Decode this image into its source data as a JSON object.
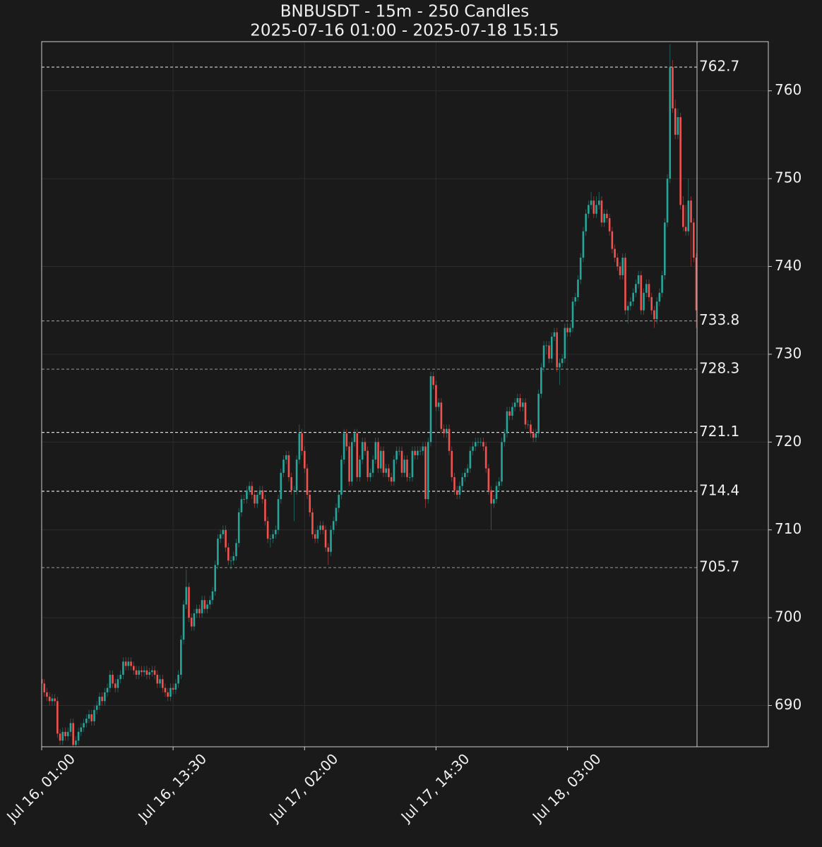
{
  "chart_data": {
    "type": "candlestick",
    "title": "BNBUSDT - 15m - 250 Candles",
    "subtitle": "2025-07-16 01:00 - 2025-07-18 15:15",
    "up_color": "#26a69a",
    "down_color": "#ef5350",
    "grid": true,
    "ylim": [
      685.3,
      765.6
    ],
    "yticks": [
      690,
      700,
      710,
      720,
      730,
      740,
      750,
      760
    ],
    "xticks": [
      "Jul 16, 01:00",
      "Jul 16, 13:30",
      "Jul 17, 02:00",
      "Jul 17, 14:30",
      "Jul 18, 03:00"
    ],
    "levels": [
      {
        "value": 762.7,
        "color": "#d8d8d8"
      },
      {
        "value": 733.8,
        "color": "#8a8a8a"
      },
      {
        "value": 728.3,
        "color": "#8a8a8a"
      },
      {
        "value": 721.1,
        "color": "#d8d8d8"
      },
      {
        "value": 714.4,
        "color": "#d8d8d8"
      },
      {
        "value": 705.7,
        "color": "#8a8a8a"
      }
    ],
    "x": [
      "Jul 16, 01:00",
      "Jul 16, 01:15",
      "Jul 16, 01:30",
      "Jul 16, 01:45",
      "Jul 16, 02:00",
      "Jul 16, 02:15",
      "Jul 16, 02:30",
      "Jul 16, 02:45",
      "Jul 16, 03:00",
      "Jul 16, 03:15",
      "Jul 16, 03:30",
      "Jul 16, 03:45",
      "Jul 16, 04:00",
      "Jul 16, 04:15",
      "Jul 16, 04:30",
      "Jul 16, 04:45",
      "Jul 16, 05:00",
      "Jul 16, 05:15",
      "Jul 16, 05:30",
      "Jul 16, 05:45",
      "Jul 16, 06:00",
      "Jul 16, 06:15",
      "Jul 16, 06:30",
      "Jul 16, 06:45",
      "Jul 16, 07:00",
      "Jul 16, 07:15",
      "Jul 16, 07:30",
      "Jul 16, 07:45",
      "Jul 16, 08:00",
      "Jul 16, 08:15",
      "Jul 16, 08:30",
      "Jul 16, 08:45",
      "Jul 16, 09:00",
      "Jul 16, 09:15",
      "Jul 16, 09:30",
      "Jul 16, 09:45",
      "Jul 16, 10:00",
      "Jul 16, 10:15",
      "Jul 16, 10:30",
      "Jul 16, 10:45",
      "Jul 16, 11:00",
      "Jul 16, 11:15",
      "Jul 16, 11:30",
      "Jul 16, 11:45",
      "Jul 16, 12:00",
      "Jul 16, 12:15",
      "Jul 16, 12:30",
      "Jul 16, 12:45",
      "Jul 16, 13:00",
      "Jul 16, 13:15",
      "Jul 16, 13:30",
      "Jul 16, 13:45",
      "Jul 16, 14:00",
      "Jul 16, 14:15",
      "Jul 16, 14:30",
      "Jul 16, 14:45",
      "Jul 16, 15:00",
      "Jul 16, 15:15",
      "Jul 16, 15:30",
      "Jul 16, 15:45",
      "Jul 16, 16:00",
      "Jul 16, 16:15",
      "Jul 16, 16:30",
      "Jul 16, 16:45",
      "Jul 16, 17:00",
      "Jul 16, 17:15",
      "Jul 16, 17:30",
      "Jul 16, 17:45",
      "Jul 16, 18:00",
      "Jul 16, 18:15",
      "Jul 16, 18:30",
      "Jul 16, 18:45",
      "Jul 16, 19:00",
      "Jul 16, 19:15",
      "Jul 16, 19:30",
      "Jul 16, 19:45",
      "Jul 16, 20:00",
      "Jul 16, 20:15",
      "Jul 16, 20:30",
      "Jul 16, 20:45",
      "Jul 16, 21:00",
      "Jul 16, 21:15",
      "Jul 16, 21:30",
      "Jul 16, 21:45",
      "Jul 16, 22:00",
      "Jul 16, 22:15",
      "Jul 16, 22:30",
      "Jul 16, 22:45",
      "Jul 16, 23:00",
      "Jul 16, 23:15",
      "Jul 16, 23:30",
      "Jul 16, 23:45",
      "Jul 17, 00:00",
      "Jul 17, 00:15",
      "Jul 17, 00:30",
      "Jul 17, 00:45",
      "Jul 17, 01:00",
      "Jul 17, 01:15",
      "Jul 17, 01:30",
      "Jul 17, 01:45",
      "Jul 17, 02:00",
      "Jul 17, 02:15",
      "Jul 17, 02:30",
      "Jul 17, 02:45",
      "Jul 17, 03:00",
      "Jul 17, 03:15",
      "Jul 17, 03:30",
      "Jul 17, 03:45",
      "Jul 17, 04:00",
      "Jul 17, 04:15",
      "Jul 17, 04:30",
      "Jul 17, 04:45",
      "Jul 17, 05:00",
      "Jul 17, 05:15",
      "Jul 17, 05:30",
      "Jul 17, 05:45",
      "Jul 17, 06:00",
      "Jul 17, 06:15",
      "Jul 17, 06:30",
      "Jul 17, 06:45",
      "Jul 17, 07:00",
      "Jul 17, 07:15",
      "Jul 17, 07:30",
      "Jul 17, 07:45",
      "Jul 17, 08:00",
      "Jul 17, 08:15",
      "Jul 17, 08:30",
      "Jul 17, 08:45",
      "Jul 17, 09:00",
      "Jul 17, 09:15",
      "Jul 17, 09:30",
      "Jul 17, 09:45",
      "Jul 17, 10:00",
      "Jul 17, 10:15",
      "Jul 17, 10:30",
      "Jul 17, 10:45",
      "Jul 17, 11:00",
      "Jul 17, 11:15",
      "Jul 17, 11:30",
      "Jul 17, 11:45",
      "Jul 17, 12:00",
      "Jul 17, 12:15",
      "Jul 17, 12:30",
      "Jul 17, 12:45",
      "Jul 17, 13:00",
      "Jul 17, 13:15",
      "Jul 17, 13:30",
      "Jul 17, 13:45",
      "Jul 17, 14:00",
      "Jul 17, 14:15",
      "Jul 17, 14:30",
      "Jul 17, 14:45",
      "Jul 17, 15:00",
      "Jul 17, 15:15",
      "Jul 17, 15:30",
      "Jul 17, 15:45",
      "Jul 17, 16:00",
      "Jul 17, 16:15",
      "Jul 17, 16:30",
      "Jul 17, 16:45",
      "Jul 17, 17:00",
      "Jul 17, 17:15",
      "Jul 17, 17:30",
      "Jul 17, 17:45",
      "Jul 17, 18:00",
      "Jul 17, 18:15",
      "Jul 17, 18:30",
      "Jul 17, 18:45",
      "Jul 17, 19:00",
      "Jul 17, 19:15",
      "Jul 17, 19:30",
      "Jul 17, 19:45",
      "Jul 17, 20:00",
      "Jul 17, 20:15",
      "Jul 17, 20:30",
      "Jul 17, 20:45",
      "Jul 17, 21:00",
      "Jul 17, 21:15",
      "Jul 17, 21:30",
      "Jul 17, 21:45",
      "Jul 17, 22:00",
      "Jul 17, 22:15",
      "Jul 17, 22:30",
      "Jul 17, 22:45",
      "Jul 17, 23:00",
      "Jul 17, 23:15",
      "Jul 17, 23:30",
      "Jul 17, 23:45",
      "Jul 18, 00:00",
      "Jul 18, 00:15",
      "Jul 18, 00:30",
      "Jul 18, 00:45",
      "Jul 18, 01:00",
      "Jul 18, 01:15",
      "Jul 18, 01:30",
      "Jul 18, 01:45",
      "Jul 18, 02:00",
      "Jul 18, 02:15",
      "Jul 18, 02:30",
      "Jul 18, 02:45",
      "Jul 18, 03:00",
      "Jul 18, 03:15",
      "Jul 18, 03:30",
      "Jul 18, 03:45",
      "Jul 18, 04:00",
      "Jul 18, 04:15",
      "Jul 18, 04:30",
      "Jul 18, 04:45",
      "Jul 18, 05:00",
      "Jul 18, 05:15",
      "Jul 18, 05:30",
      "Jul 18, 05:45",
      "Jul 18, 06:00",
      "Jul 18, 06:15",
      "Jul 18, 06:30",
      "Jul 18, 06:45",
      "Jul 18, 07:00",
      "Jul 18, 07:15",
      "Jul 18, 07:30",
      "Jul 18, 07:45",
      "Jul 18, 08:00",
      "Jul 18, 08:15",
      "Jul 18, 08:30",
      "Jul 18, 08:45",
      "Jul 18, 09:00",
      "Jul 18, 09:15",
      "Jul 18, 09:30",
      "Jul 18, 09:45",
      "Jul 18, 10:00",
      "Jul 18, 10:15",
      "Jul 18, 10:30",
      "Jul 18, 10:45",
      "Jul 18, 11:00",
      "Jul 18, 11:15",
      "Jul 18, 11:30",
      "Jul 18, 11:45",
      "Jul 18, 12:00",
      "Jul 18, 12:15",
      "Jul 18, 12:30",
      "Jul 18, 12:45",
      "Jul 18, 13:00",
      "Jul 18, 13:15",
      "Jul 18, 13:30",
      "Jul 18, 13:45",
      "Jul 18, 14:00",
      "Jul 18, 14:15",
      "Jul 18, 14:30",
      "Jul 18, 14:45",
      "Jul 18, 15:00",
      "Jul 18, 15:15"
    ],
    "open": [
      693,
      692.5,
      691.5,
      691,
      690.5,
      690.8,
      690.5,
      686.8,
      686,
      687,
      686.5,
      687,
      688,
      685.5,
      686,
      687,
      687.5,
      688,
      688.5,
      689,
      688.2,
      689.5,
      690,
      691,
      690.5,
      691.5,
      692,
      693.5,
      692.5,
      692,
      693,
      693.5,
      695,
      694.5,
      695,
      694.5,
      694,
      693.5,
      694,
      693.8,
      694,
      693.5,
      693.8,
      694,
      693.5,
      692.5,
      693,
      692,
      691.5,
      691,
      692,
      691.8,
      692.5,
      693.5,
      697.5,
      701.5,
      703.5,
      700,
      699,
      700.5,
      701,
      700.5,
      702,
      701,
      701.5,
      702,
      703,
      706,
      709,
      709.5,
      710,
      708,
      706.5,
      706.5,
      707,
      708.5,
      712,
      713.5,
      713.5,
      714.5,
      715,
      714,
      713,
      714,
      714.5,
      713.5,
      711,
      709,
      709,
      709.5,
      710,
      713.5,
      716.5,
      718,
      718.5,
      716,
      714.5,
      714.5,
      718,
      721,
      719,
      717,
      714,
      712,
      709.5,
      709,
      710,
      710.5,
      710,
      708,
      707.5,
      710,
      711,
      712.5,
      714,
      718,
      721,
      719.5,
      715.5,
      720,
      721,
      716,
      718,
      720,
      719,
      716,
      716.5,
      718,
      720,
      717,
      719,
      716.5,
      717,
      716,
      715.5,
      718,
      719,
      719,
      716.5,
      718,
      716,
      716,
      719,
      718.5,
      719,
      719,
      719.5,
      713.5,
      720,
      727.5,
      726.5,
      724,
      724.5,
      721.5,
      721,
      721.5,
      719,
      716,
      714.5,
      714,
      715,
      716,
      716.5,
      717,
      719,
      719.5,
      720,
      720,
      720,
      719.5,
      717,
      714.5,
      713,
      713.5,
      715,
      715.5,
      720,
      721,
      723.5,
      723,
      724,
      724.5,
      725,
      724,
      724.5,
      722,
      722,
      721,
      720.5,
      721,
      725.5,
      728.5,
      731,
      731,
      729.5,
      732,
      732.5,
      728.5,
      729,
      729.5,
      733,
      732.5,
      733,
      736,
      736.5,
      738.5,
      741,
      744,
      746,
      747,
      747.5,
      746,
      747,
      747.5,
      745,
      746,
      745.5,
      744,
      742,
      741,
      740,
      739,
      741,
      735,
      735.5,
      736,
      737,
      738,
      739,
      735,
      737,
      738,
      736.5,
      735,
      734,
      736,
      737,
      739,
      745,
      750,
      762.7,
      758,
      755,
      757,
      747,
      744.5,
      744,
      747.5,
      745,
      741
    ],
    "high": [
      693.5,
      693,
      692,
      691.5,
      691.3,
      691.3,
      691,
      687.3,
      687.5,
      687.5,
      687.5,
      688.5,
      688.5,
      686.5,
      687.5,
      688,
      688.5,
      689,
      689.5,
      689.5,
      690,
      690.5,
      691.5,
      691.5,
      692,
      692.5,
      694,
      694,
      693,
      693.5,
      694,
      695.5,
      695.5,
      695.5,
      695.5,
      695,
      694.5,
      694.5,
      694.5,
      694.5,
      694.5,
      694.3,
      694.5,
      694.5,
      694,
      693.5,
      693.5,
      692.5,
      692,
      692.5,
      692.5,
      693,
      694,
      698,
      702,
      705.5,
      704,
      700.5,
      701,
      701.5,
      701.5,
      702.5,
      702.5,
      702,
      702.5,
      703.5,
      706.5,
      709.5,
      710,
      710.5,
      710.5,
      708.5,
      707,
      707.5,
      709,
      712.5,
      714,
      714,
      715,
      715.5,
      715.5,
      714.5,
      714.5,
      715,
      715,
      714,
      711.5,
      709.5,
      710,
      710.5,
      714,
      717,
      718.5,
      719,
      719,
      716.5,
      715,
      718.5,
      722,
      721.5,
      719.5,
      717.5,
      714.5,
      712.5,
      710,
      710.5,
      711,
      711,
      710.5,
      708.5,
      710.5,
      711.5,
      713,
      714.5,
      718.5,
      721.5,
      721.5,
      720,
      720.5,
      721.5,
      721.5,
      718.5,
      720.5,
      720.5,
      719.5,
      717,
      718.5,
      720.5,
      720.5,
      719.5,
      719.5,
      717.5,
      717.5,
      716.5,
      718.5,
      719.5,
      719.5,
      719.5,
      718.5,
      718.5,
      716.5,
      719.5,
      719.5,
      719.5,
      719.5,
      720,
      720,
      720.5,
      728,
      728,
      727,
      725,
      725,
      722,
      722,
      722,
      719.5,
      716.5,
      715,
      715.5,
      716.5,
      717,
      717.5,
      719.5,
      720,
      720.5,
      720.5,
      720.5,
      720.5,
      720,
      717.5,
      715,
      714,
      715.5,
      716,
      720.5,
      721.5,
      724,
      724,
      724.5,
      725,
      725.5,
      725.5,
      725,
      725,
      722.5,
      722.5,
      721.5,
      721.5,
      726,
      729,
      731.5,
      731.5,
      731.5,
      732.5,
      733,
      733,
      729.5,
      730,
      733.5,
      733.5,
      733.5,
      736.5,
      737,
      739,
      741.5,
      744.5,
      746.5,
      747.5,
      748.5,
      748,
      748,
      748.5,
      748,
      746.5,
      746.5,
      746,
      744.5,
      742.5,
      741.5,
      740.5,
      741.5,
      741.5,
      736,
      736.5,
      737.5,
      738.5,
      739.5,
      739.5,
      737.5,
      738.5,
      738.5,
      737,
      735.5,
      736.5,
      737.5,
      739.5,
      745.5,
      750.5,
      765.3,
      763.5,
      759,
      758,
      757.5,
      748,
      747,
      750,
      748,
      745.5,
      741.5
    ],
    "low": [
      692,
      691,
      690.5,
      690,
      690,
      690,
      686.3,
      685.5,
      685.5,
      686,
      686,
      686.5,
      684.5,
      685,
      685.5,
      686.5,
      687,
      687.5,
      688,
      687.7,
      687.7,
      689,
      689.5,
      690,
      690,
      691,
      691.5,
      692,
      691.5,
      691.5,
      692.5,
      693,
      694,
      694,
      694,
      693.5,
      693,
      693,
      693.3,
      693.3,
      693,
      693,
      693.3,
      693,
      692,
      692,
      691.5,
      691,
      690.5,
      690.5,
      691.3,
      691.3,
      692,
      693,
      697,
      701,
      699.5,
      698.5,
      698.5,
      700,
      700,
      700,
      700.5,
      700.5,
      701,
      701.5,
      702.5,
      705.5,
      708.5,
      709,
      707.5,
      706,
      705.5,
      706,
      706.5,
      708,
      711.5,
      713,
      713,
      714,
      713.5,
      712.5,
      712.5,
      713.5,
      713,
      710.5,
      708.5,
      708,
      708.5,
      709,
      709.5,
      713,
      716,
      717.5,
      715.5,
      714,
      711,
      714,
      717.5,
      718.5,
      716.5,
      713.5,
      711.5,
      709,
      708.5,
      708.5,
      709.5,
      709.5,
      707.5,
      706,
      707,
      709.5,
      710.5,
      712,
      713.5,
      717.5,
      719,
      715,
      715,
      719.5,
      715.5,
      715.5,
      717.5,
      718.5,
      715.5,
      715.5,
      716,
      717.5,
      716.5,
      716.5,
      716,
      716,
      715.5,
      715,
      715,
      717.5,
      718.5,
      716,
      716,
      715.5,
      715.5,
      715.5,
      718,
      718,
      718.5,
      718.5,
      712.5,
      713,
      719.5,
      726,
      723.5,
      723.5,
      721,
      720.5,
      720.5,
      718.5,
      715.5,
      714,
      713.5,
      713.5,
      714.5,
      715.5,
      716,
      716.5,
      718.5,
      719,
      719.5,
      719.5,
      719,
      716.5,
      714,
      710,
      712.5,
      713,
      714.5,
      715,
      719.5,
      720.5,
      722.5,
      722.5,
      723.5,
      724,
      723.5,
      723.5,
      721.5,
      721.5,
      720.5,
      720,
      720,
      720.5,
      725,
      728,
      730,
      729,
      729,
      731.5,
      728,
      726.5,
      728.5,
      729,
      732,
      732,
      732.5,
      735.5,
      736,
      738,
      740.5,
      743.5,
      745.5,
      746.5,
      745.5,
      745.5,
      746.5,
      744.5,
      744.5,
      745,
      743.5,
      741.5,
      740.5,
      739.5,
      738.5,
      738.5,
      734.5,
      733.5,
      735,
      735.5,
      736.5,
      737.5,
      734.5,
      734.5,
      736.5,
      736,
      734.5,
      733,
      733.5,
      735.5,
      736.5,
      738.5,
      744.5,
      749.5,
      757.5,
      754.5,
      754.5,
      746.5,
      744,
      743.5,
      743.5,
      740,
      740.5,
      733
    ],
    "close": [
      692.5,
      691.5,
      691,
      690.5,
      690.8,
      690.5,
      686.8,
      686,
      687,
      686.5,
      687,
      688,
      685.5,
      686,
      687,
      687.5,
      688,
      688.5,
      689,
      688.2,
      689.5,
      690,
      691,
      690.5,
      691.5,
      692,
      693.5,
      692.5,
      692,
      693,
      693.5,
      695,
      694.5,
      695,
      694.5,
      694,
      693.5,
      694,
      693.8,
      694,
      693.5,
      693.8,
      694,
      693.5,
      692.5,
      693,
      692,
      691.5,
      691,
      692,
      691.8,
      692.5,
      693.5,
      697.5,
      701.5,
      703.5,
      700,
      699,
      700.5,
      701,
      700.5,
      702,
      701,
      701.5,
      702,
      703,
      706,
      709,
      709.5,
      710,
      708,
      706.5,
      706.5,
      707,
      708.5,
      712,
      713.5,
      713.5,
      714.5,
      715,
      714,
      713,
      714,
      714.5,
      713.5,
      711,
      709,
      709,
      709.5,
      710,
      713.5,
      716.5,
      718,
      718.5,
      716,
      714.5,
      714.5,
      718,
      721,
      719,
      717,
      714,
      712,
      709.5,
      709,
      710,
      710.5,
      710,
      708,
      707.5,
      710,
      711,
      712.5,
      714,
      718,
      721,
      719.5,
      715.5,
      720,
      721,
      716,
      718,
      720,
      719,
      716,
      716.5,
      718,
      720,
      717,
      719,
      716.5,
      717,
      716,
      715.5,
      718,
      719,
      719,
      716.5,
      718,
      716,
      716,
      719,
      718.5,
      719,
      719,
      719.5,
      713.5,
      720,
      727.5,
      726.5,
      724,
      724.5,
      721.5,
      721,
      721.5,
      719,
      716,
      714.5,
      714,
      715,
      716,
      716.5,
      717,
      719,
      719.5,
      720,
      720,
      720,
      719.5,
      717,
      714.5,
      713,
      713.5,
      715,
      715.5,
      720,
      721,
      723.5,
      723,
      724,
      724.5,
      725,
      724,
      724.5,
      722,
      722,
      721,
      720.5,
      721,
      725.5,
      728.5,
      731,
      731,
      729.5,
      732,
      732.5,
      728.5,
      729,
      729.5,
      733,
      732.5,
      733,
      736,
      736.5,
      738.5,
      741,
      744,
      746,
      747,
      747.5,
      746,
      747,
      747.5,
      745,
      746,
      745.5,
      744,
      742,
      741,
      740,
      739,
      741,
      735,
      735.5,
      736,
      737,
      738,
      739,
      735,
      737,
      738,
      736.5,
      735,
      734,
      736,
      737,
      739,
      745,
      750,
      762.7,
      758,
      755,
      757,
      747,
      744.5,
      744,
      747.5,
      745,
      741,
      735
    ]
  }
}
